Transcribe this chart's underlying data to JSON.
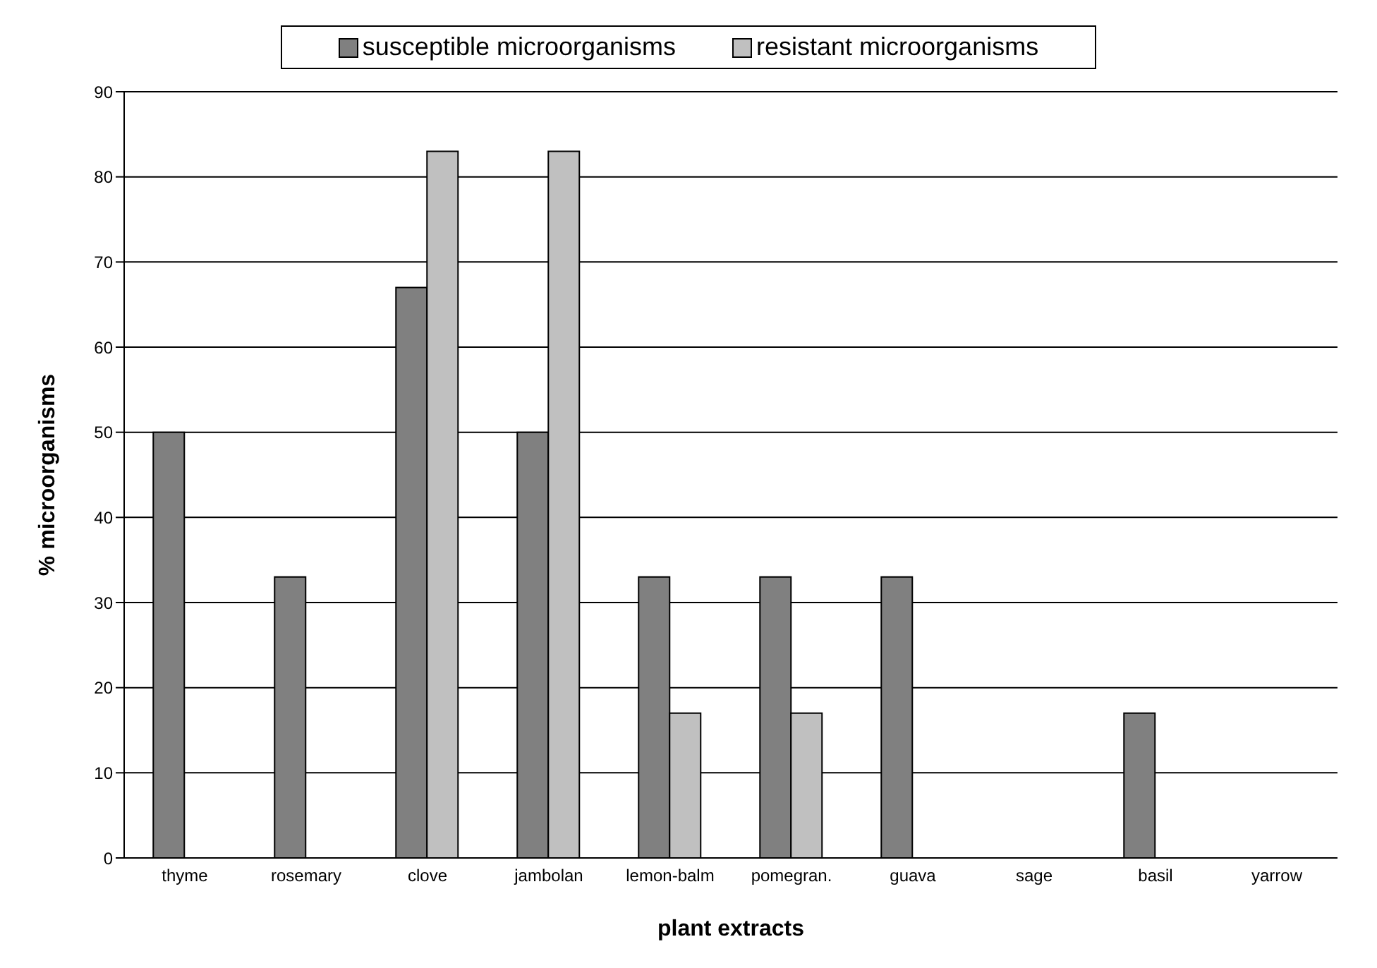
{
  "chart_data": {
    "type": "bar",
    "xlabel": "plant extracts",
    "ylabel": "% microorganisms",
    "categories": [
      "thyme",
      "rosemary",
      "clove",
      "jambolan",
      "lemon-balm",
      "pomegran.",
      "guava",
      "sage",
      "basil",
      "yarrow"
    ],
    "series": [
      {
        "name": "susceptible microorganisms",
        "color": "#808080",
        "values": [
          50,
          33,
          67,
          50,
          33,
          33,
          33,
          0,
          17,
          0
        ]
      },
      {
        "name": "resistant microorganisms",
        "color": "#c0c0c0",
        "values": [
          0,
          0,
          83,
          83,
          17,
          17,
          0,
          0,
          0,
          0
        ]
      }
    ],
    "ylim": [
      0,
      90
    ],
    "yticks": [
      0,
      10,
      20,
      30,
      40,
      50,
      60,
      70,
      80,
      90
    ],
    "grid": "y",
    "legend": "top"
  }
}
